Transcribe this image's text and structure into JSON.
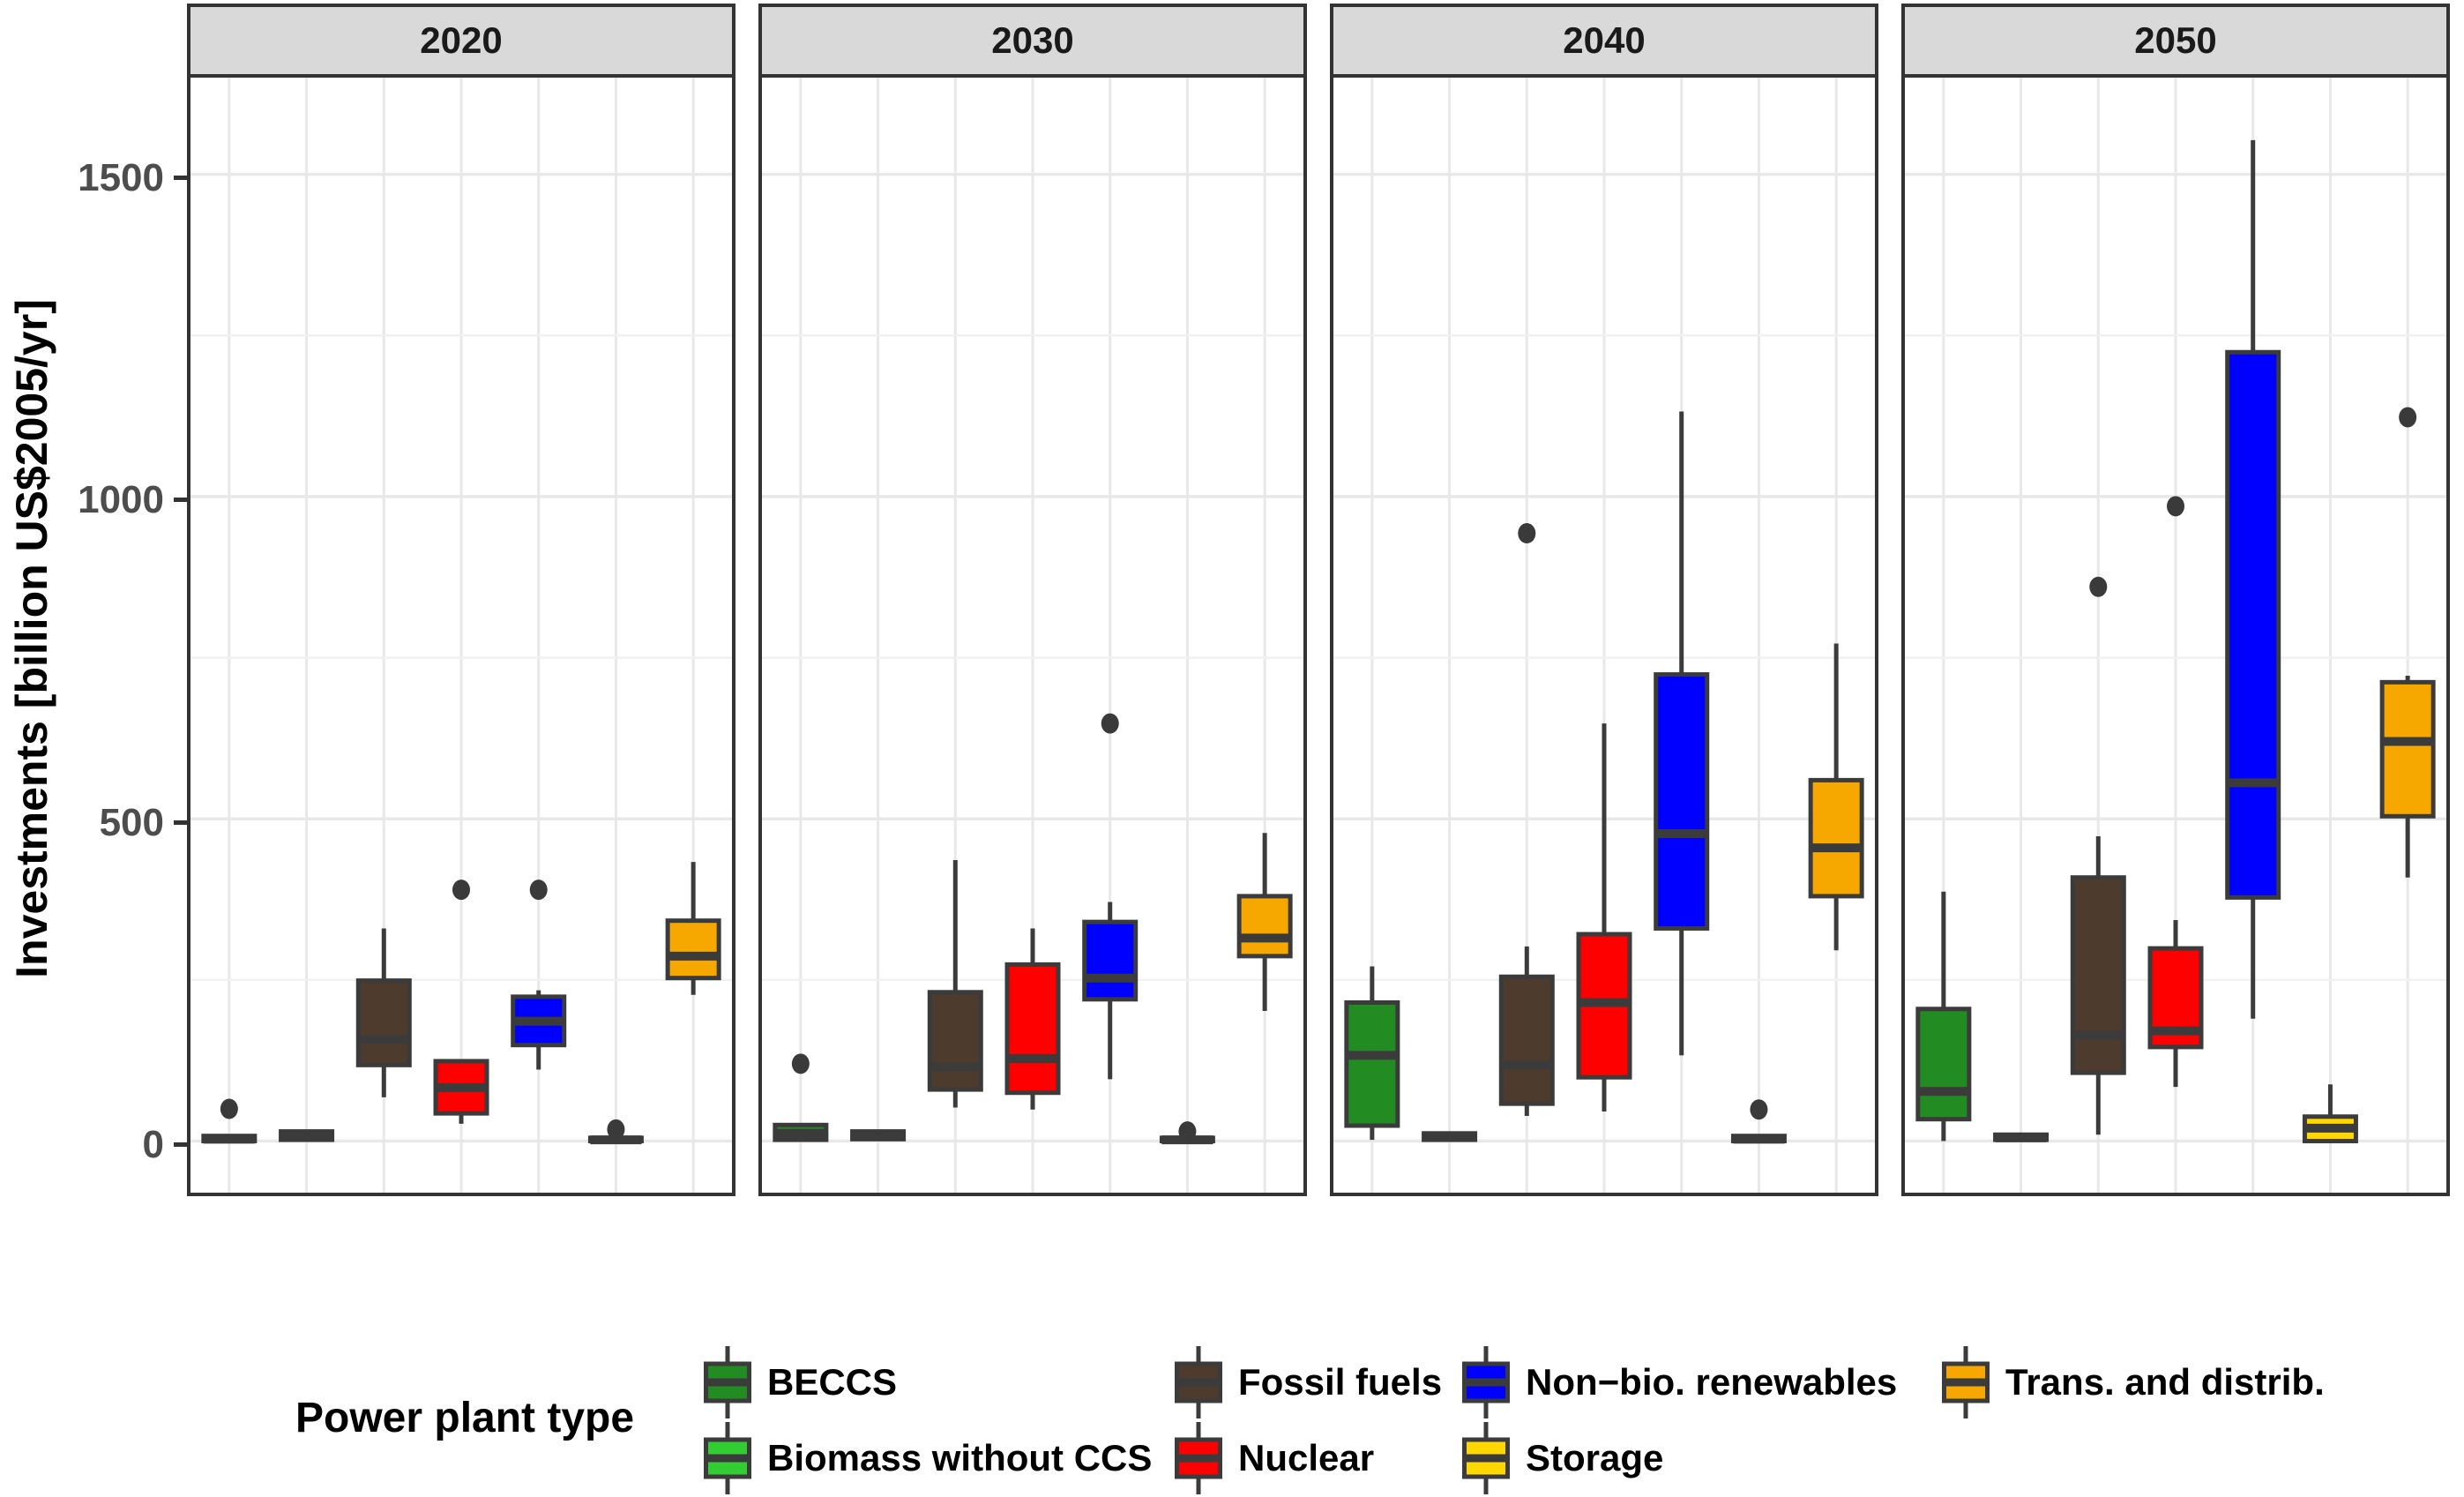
{
  "legend": {
    "title": "Power plant type"
  },
  "chart_data": {
    "type": "boxplot",
    "title": "",
    "xlabel": "",
    "ylabel": "Investments [billion US$2005/yr]",
    "facets": [
      "2020",
      "2030",
      "2040",
      "2050"
    ],
    "ylim": [
      -80,
      1650
    ],
    "yticks": [
      0,
      500,
      1000,
      1500
    ],
    "ytick_labels": [
      "0",
      "500",
      "1000",
      "1500"
    ],
    "grid_minor": [
      250,
      750,
      1250
    ],
    "grid_on": true,
    "legend_position": "bottom",
    "box_border_color": "#3b3b3b",
    "strip_bg_color": "#d9d9d9",
    "categories": [
      {
        "label": "BECCS",
        "color": "#228B22"
      },
      {
        "label": "Biomass without CCS",
        "color": "#32CD32"
      },
      {
        "label": "Fossil fuels",
        "color": "#4D3B2E"
      },
      {
        "label": "Nuclear",
        "color": "#FF0000"
      },
      {
        "label": "Non−bio. renewables",
        "color": "#0000FF"
      },
      {
        "label": "Storage",
        "color": "#FFD700"
      },
      {
        "label": "Trans. and distrib.",
        "color": "#F6A800"
      }
    ],
    "series": {
      "2020": [
        {
          "category": "BECCS",
          "min": 0,
          "q1": 0,
          "median": 3,
          "q3": 8,
          "max": 8,
          "outliers": [
            50
          ]
        },
        {
          "category": "Biomass without CCS",
          "min": 0,
          "q1": 2,
          "median": 8,
          "q3": 15,
          "max": 15,
          "outliers": []
        },
        {
          "category": "Fossil fuels",
          "min": 68,
          "q1": 118,
          "median": 158,
          "q3": 249,
          "max": 330,
          "outliers": []
        },
        {
          "category": "Nuclear",
          "min": 27,
          "q1": 43,
          "median": 83,
          "q3": 124,
          "max": 124,
          "outliers": [
            390
          ]
        },
        {
          "category": "Non-bio. renewables",
          "min": 111,
          "q1": 149,
          "median": 186,
          "q3": 224,
          "max": 234,
          "outliers": [
            390
          ]
        },
        {
          "category": "Storage",
          "min": 0,
          "q1": 0,
          "median": 2,
          "q3": 5,
          "max": 5,
          "outliers": [
            18
          ]
        },
        {
          "category": "Trans. and distrib.",
          "min": 227,
          "q1": 253,
          "median": 287,
          "q3": 342,
          "max": 433,
          "outliers": []
        }
      ],
      "2030": [
        {
          "category": "BECCS",
          "min": 0,
          "q1": 2,
          "median": 12,
          "q3": 25,
          "max": 25,
          "outliers": [
            120
          ]
        },
        {
          "category": "Biomass without CCS",
          "min": 0,
          "q1": 3,
          "median": 8,
          "q3": 15,
          "max": 15,
          "outliers": []
        },
        {
          "category": "Fossil fuels",
          "min": 52,
          "q1": 80,
          "median": 115,
          "q3": 231,
          "max": 436,
          "outliers": []
        },
        {
          "category": "Nuclear",
          "min": 49,
          "q1": 75,
          "median": 128,
          "q3": 274,
          "max": 330,
          "outliers": []
        },
        {
          "category": "Non-bio. renewables",
          "min": 96,
          "q1": 220,
          "median": 253,
          "q3": 340,
          "max": 371,
          "outliers": [
            648
          ]
        },
        {
          "category": "Storage",
          "min": 0,
          "q1": 0,
          "median": 2,
          "q3": 5,
          "max": 5,
          "outliers": [
            15
          ]
        },
        {
          "category": "Trans. and distrib.",
          "min": 202,
          "q1": 287,
          "median": 315,
          "q3": 380,
          "max": 478,
          "outliers": []
        }
      ],
      "2040": [
        {
          "category": "BECCS",
          "min": 2,
          "q1": 24,
          "median": 133,
          "q3": 215,
          "max": 271,
          "outliers": []
        },
        {
          "category": "Biomass without CCS",
          "min": 0,
          "q1": 2,
          "median": 6,
          "q3": 12,
          "max": 12,
          "outliers": []
        },
        {
          "category": "Fossil fuels",
          "min": 39,
          "q1": 58,
          "median": 118,
          "q3": 255,
          "max": 302,
          "outliers": [
            943
          ]
        },
        {
          "category": "Nuclear",
          "min": 46,
          "q1": 99,
          "median": 215,
          "q3": 321,
          "max": 648,
          "outliers": []
        },
        {
          "category": "Non-bio. renewables",
          "min": 133,
          "q1": 330,
          "median": 477,
          "q3": 724,
          "max": 1132,
          "outliers": []
        },
        {
          "category": "Storage",
          "min": 0,
          "q1": 0,
          "median": 3,
          "q3": 8,
          "max": 8,
          "outliers": [
            49
          ]
        },
        {
          "category": "Trans. and distrib.",
          "min": 296,
          "q1": 380,
          "median": 455,
          "q3": 560,
          "max": 772,
          "outliers": []
        }
      ],
      "2050": [
        {
          "category": "BECCS",
          "min": 0,
          "q1": 34,
          "median": 77,
          "q3": 205,
          "max": 387,
          "outliers": []
        },
        {
          "category": "Biomass without CCS",
          "min": 0,
          "q1": 2,
          "median": 5,
          "q3": 10,
          "max": 10,
          "outliers": []
        },
        {
          "category": "Fossil fuels",
          "min": 10,
          "q1": 106,
          "median": 164,
          "q3": 409,
          "max": 473,
          "outliers": [
            860
          ]
        },
        {
          "category": "Nuclear",
          "min": 84,
          "q1": 146,
          "median": 171,
          "q3": 299,
          "max": 343,
          "outliers": [
            985
          ]
        },
        {
          "category": "Non-bio. renewables",
          "min": 190,
          "q1": 378,
          "median": 556,
          "q3": 1224,
          "max": 1553,
          "outliers": []
        },
        {
          "category": "Storage",
          "min": 0,
          "q1": 0,
          "median": 20,
          "q3": 38,
          "max": 88,
          "outliers": []
        },
        {
          "category": "Trans. and distrib.",
          "min": 409,
          "q1": 504,
          "median": 620,
          "q3": 712,
          "max": 722,
          "outliers": [
            1123
          ]
        }
      ]
    }
  }
}
